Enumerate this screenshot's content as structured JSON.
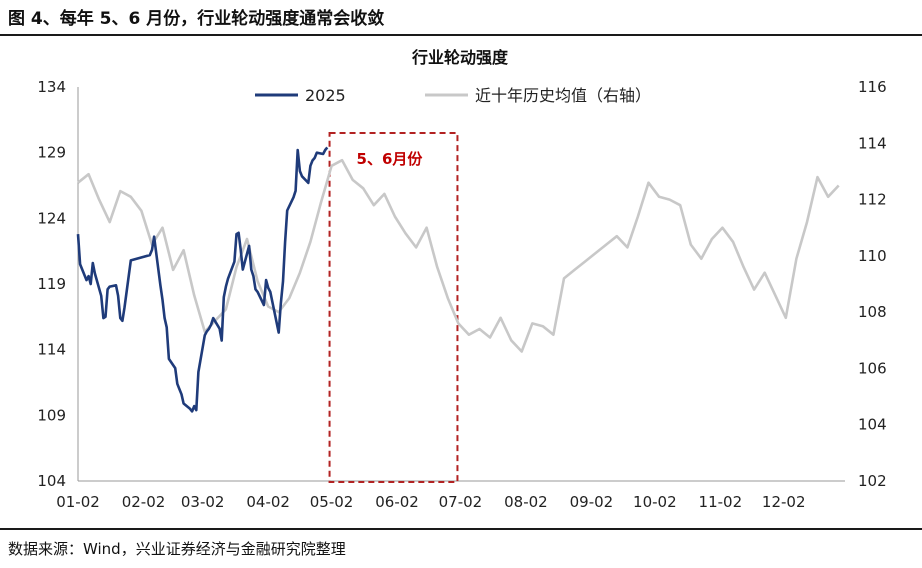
{
  "figure": {
    "title": "图 4、每年 5、6 月份，行业轮动强度通常会收敛",
    "source": "数据来源：Wind，兴业证券经济与金融研究院整理"
  },
  "colors": {
    "series_2025": "#1f3b7a",
    "series_hist": "#c8c8c8",
    "highlight": "#b22222"
  },
  "chart_data": {
    "type": "line",
    "title": "行业轮动强度",
    "xlabel": "",
    "x_ticks": [
      "01-02",
      "02-02",
      "03-02",
      "04-02",
      "05-02",
      "06-02",
      "07-02",
      "08-02",
      "09-02",
      "10-02",
      "11-02",
      "12-02"
    ],
    "y_left": {
      "ticks": [
        104,
        109,
        114,
        119,
        124,
        129,
        134
      ],
      "ylim": [
        104,
        134
      ]
    },
    "y_right": {
      "ticks": [
        102,
        104,
        106,
        108,
        110,
        112,
        114,
        116
      ],
      "ylim": [
        102,
        116
      ]
    },
    "legend": {
      "placement": "top"
    },
    "series": [
      {
        "name": "2025",
        "axis": "left",
        "x": [
          "01-02",
          "01-03",
          "01-06",
          "01-07",
          "01-08",
          "01-09",
          "01-10",
          "01-13",
          "01-14",
          "01-15",
          "01-16",
          "01-17",
          "01-20",
          "01-21",
          "01-22",
          "01-23",
          "01-24",
          "01-27",
          "02-05",
          "02-06",
          "02-07",
          "02-10",
          "02-11",
          "02-12",
          "02-13",
          "02-14",
          "02-17",
          "02-18",
          "02-19",
          "02-20",
          "02-21",
          "02-24",
          "02-25",
          "02-26",
          "02-27",
          "02-28",
          "03-03",
          "03-04",
          "03-05",
          "03-06",
          "03-07",
          "03-10",
          "03-11",
          "03-12",
          "03-13",
          "03-14",
          "03-17",
          "03-18",
          "03-19",
          "03-20",
          "03-21",
          "03-24",
          "03-25",
          "03-26",
          "03-27",
          "03-28",
          "03-31",
          "04-01",
          "04-02",
          "04-03",
          "04-07",
          "04-08",
          "04-09",
          "04-10",
          "04-11",
          "04-14",
          "04-15",
          "04-16",
          "04-17",
          "04-18",
          "04-21",
          "04-22",
          "04-23",
          "04-24",
          "04-25",
          "04-28",
          "04-29",
          "04-30"
        ],
        "values": [
          122.8,
          120.5,
          119.3,
          119.6,
          119.0,
          120.6,
          119.8,
          118.1,
          116.4,
          116.5,
          118.6,
          118.8,
          118.9,
          118.1,
          116.4,
          116.2,
          117.2,
          120.8,
          121.2,
          121.6,
          122.6,
          118.9,
          117.8,
          116.4,
          115.7,
          113.3,
          112.6,
          111.4,
          111.0,
          110.6,
          109.9,
          109.5,
          109.3,
          109.7,
          109.4,
          112.3,
          115.1,
          115.4,
          115.6,
          115.9,
          116.4,
          115.6,
          114.7,
          118.0,
          118.8,
          119.4,
          120.7,
          122.8,
          122.9,
          121.6,
          120.1,
          121.9,
          120.1,
          119.6,
          118.6,
          118.4,
          117.4,
          119.3,
          118.7,
          118.4,
          115.3,
          117.5,
          119.2,
          122.2,
          124.6,
          125.6,
          126.1,
          129.2,
          127.6,
          127.2,
          126.7,
          128.0,
          128.4,
          128.6,
          129.0,
          128.9,
          129.2,
          129.4
        ]
      },
      {
        "name": "近十年历史均值（右轴）",
        "axis": "right",
        "x": [
          "01-02",
          "01-07",
          "01-12",
          "01-17",
          "01-22",
          "01-27",
          "02-01",
          "02-06",
          "02-11",
          "02-16",
          "02-21",
          "02-26",
          "03-03",
          "03-08",
          "03-13",
          "03-18",
          "03-23",
          "03-28",
          "04-02",
          "04-07",
          "04-12",
          "04-17",
          "04-22",
          "04-27",
          "05-02",
          "05-07",
          "05-12",
          "05-17",
          "05-22",
          "05-27",
          "06-01",
          "06-06",
          "06-11",
          "06-16",
          "06-21",
          "06-26",
          "07-01",
          "07-06",
          "07-11",
          "07-16",
          "07-21",
          "07-26",
          "07-31",
          "08-05",
          "08-10",
          "08-15",
          "08-20",
          "08-25",
          "08-30",
          "09-04",
          "09-09",
          "09-14",
          "09-19",
          "09-24",
          "09-29",
          "10-04",
          "10-09",
          "10-14",
          "10-19",
          "10-24",
          "10-29",
          "11-03",
          "11-08",
          "11-13",
          "11-18",
          "11-23",
          "11-28",
          "12-03",
          "12-08",
          "12-13",
          "12-18",
          "12-23",
          "12-28"
        ],
        "values": [
          112.6,
          112.9,
          112.0,
          111.2,
          112.3,
          112.1,
          111.6,
          110.4,
          111.0,
          109.5,
          110.2,
          108.6,
          107.3,
          107.7,
          108.1,
          109.6,
          110.6,
          109.1,
          108.2,
          108.0,
          108.5,
          109.4,
          110.5,
          111.9,
          113.2,
          113.4,
          112.7,
          112.4,
          111.8,
          112.2,
          111.4,
          110.8,
          110.3,
          111.0,
          109.6,
          108.5,
          107.6,
          107.2,
          107.4,
          107.1,
          107.8,
          107.0,
          106.6,
          107.6,
          107.5,
          107.2,
          109.2,
          109.5,
          109.8,
          110.1,
          110.4,
          110.7,
          110.3,
          111.4,
          112.6,
          112.1,
          112.0,
          111.8,
          110.4,
          109.9,
          110.6,
          111.0,
          110.5,
          109.6,
          108.8,
          109.4,
          108.6,
          107.8,
          109.9,
          111.2,
          112.8,
          112.1,
          112.5
        ]
      }
    ],
    "highlight": {
      "x_start": "05-02",
      "x_end": "07-02",
      "label": "5、6月份"
    }
  }
}
